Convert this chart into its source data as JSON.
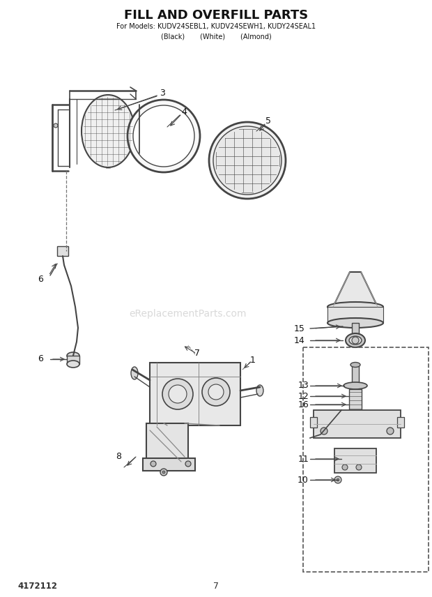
{
  "title": "FILL AND OVERFILL PARTS",
  "subtitle1": "For Models: KUDV24SEBL1, KUDV24SEWH1, KUDY24SEAL1",
  "subtitle2": "(Black)       (White)       (Almond)",
  "doc_number": "4172112",
  "page_number": "7",
  "watermark": "eReplacementParts.com",
  "bg_color": "#ffffff",
  "title_color": "#111111",
  "line_color": "#444444"
}
